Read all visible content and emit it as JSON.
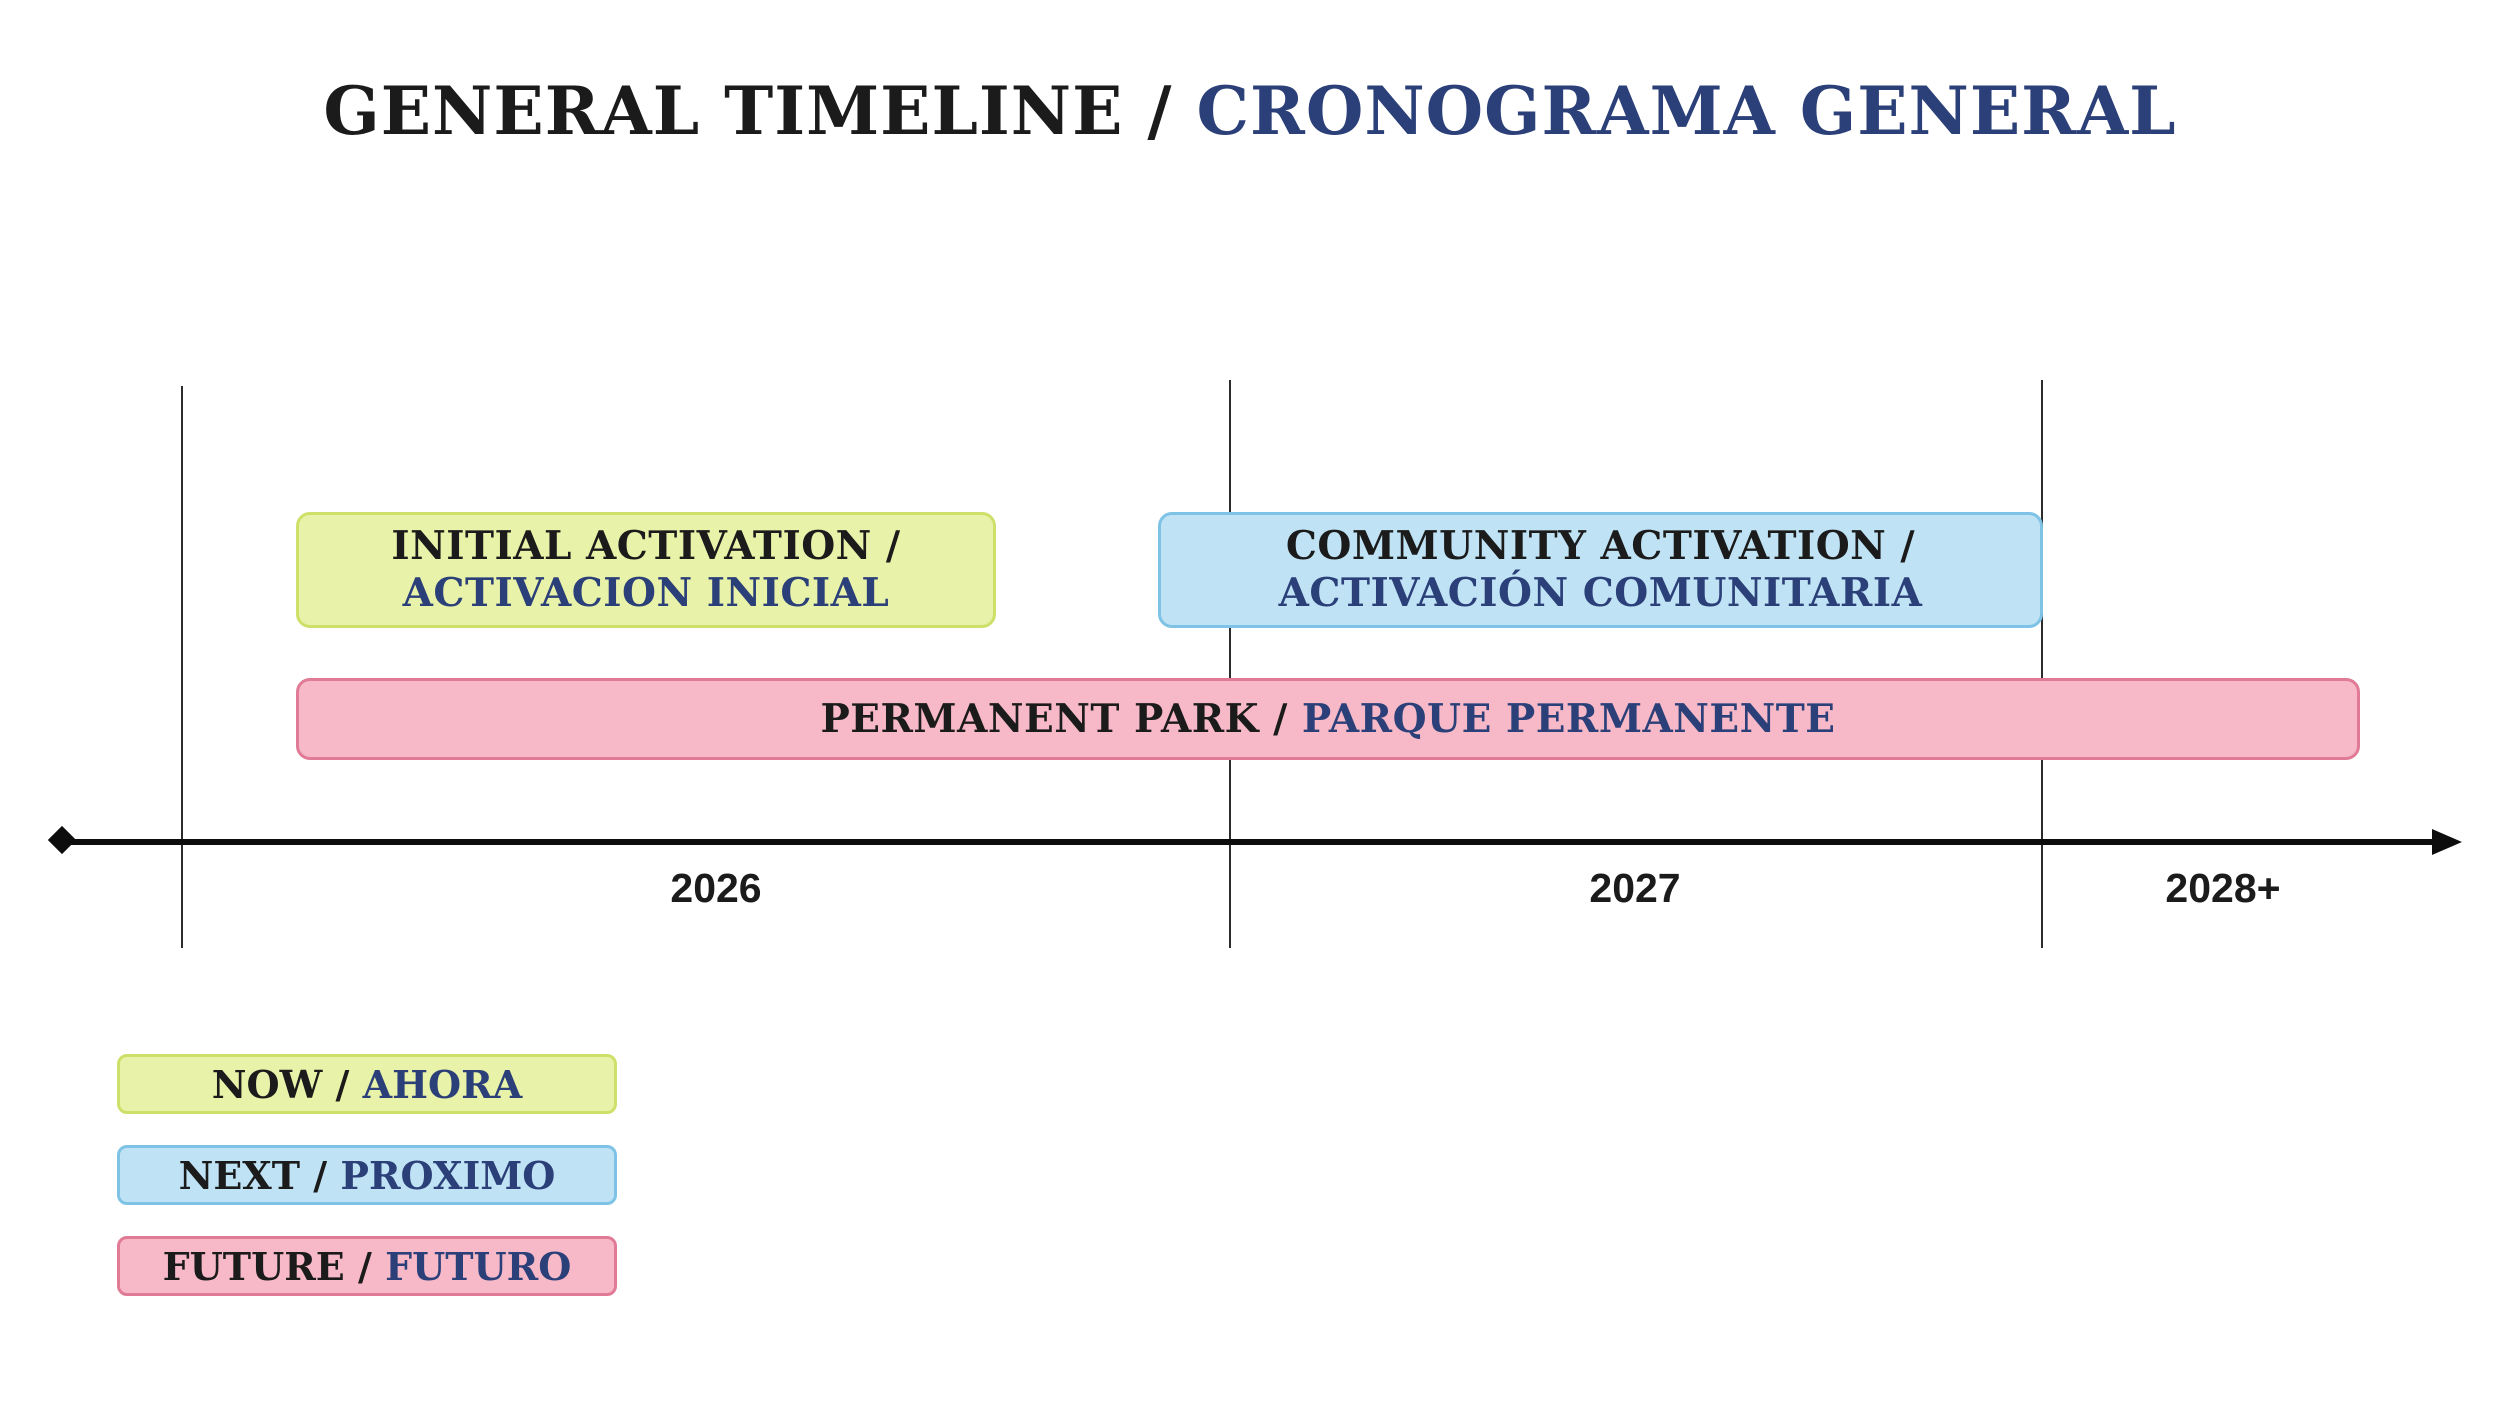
{
  "title": {
    "english": "GENERAL TIMELINE /",
    "spanish": "CRONOGRAMA GENERAL"
  },
  "colors": {
    "english_text": "#1b1b1b",
    "spanish_text": "#2b3f78",
    "now": "#e8f2a8",
    "next": "#bfe3f5",
    "future": "#f7b9c8"
  },
  "timeline": {
    "years": [
      "2026",
      "2027",
      "2028+"
    ],
    "phases": [
      {
        "category": "now",
        "english": "INITIAL ACTIVATION /",
        "spanish": "ACTIVACION INICIAL"
      },
      {
        "category": "next",
        "english": "COMMUNITY ACTIVATION /",
        "spanish": "ACTIVACIÓN COMUNITARIA"
      },
      {
        "category": "future",
        "english": "PERMANENT PARK /",
        "spanish": "PARQUE PERMANENTE"
      }
    ]
  },
  "legend": [
    {
      "category": "now",
      "english": "NOW /",
      "spanish": "AHORA"
    },
    {
      "category": "next",
      "english": "NEXT /",
      "spanish": "PROXIMO"
    },
    {
      "category": "future",
      "english": "FUTURE /",
      "spanish": "FUTURO"
    }
  ]
}
